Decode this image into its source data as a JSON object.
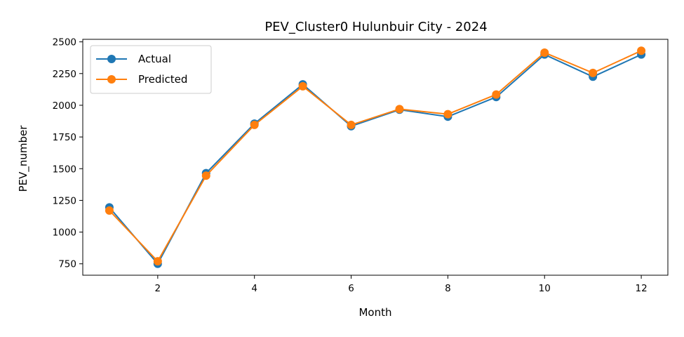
{
  "chart_data": {
    "type": "line",
    "title": "PEV_Cluster0 Hulunbuir City - 2024",
    "xlabel": "Month",
    "ylabel": "PEV_number",
    "x": [
      1,
      2,
      3,
      4,
      5,
      6,
      7,
      8,
      9,
      10,
      11,
      12
    ],
    "xlim": [
      0.45,
      12.55
    ],
    "ylim": [
      660,
      2520
    ],
    "xticks": [
      "2",
      "4",
      "6",
      "8",
      "10",
      "12"
    ],
    "yticks": [
      "750",
      "1000",
      "1250",
      "1500",
      "1750",
      "2000",
      "2250",
      "2500"
    ],
    "grid": false,
    "legend_position": "upper left",
    "series": [
      {
        "name": "Actual",
        "color": "#1f77b4",
        "marker": "circle",
        "values": [
          1195,
          750,
          1465,
          1855,
          2165,
          1835,
          1965,
          1910,
          2065,
          2400,
          2225,
          2400
        ]
      },
      {
        "name": "Predicted",
        "color": "#ff7f0e",
        "marker": "circle",
        "values": [
          1170,
          770,
          1445,
          1845,
          2150,
          1845,
          1970,
          1930,
          2085,
          2415,
          2255,
          2430
        ]
      }
    ]
  }
}
